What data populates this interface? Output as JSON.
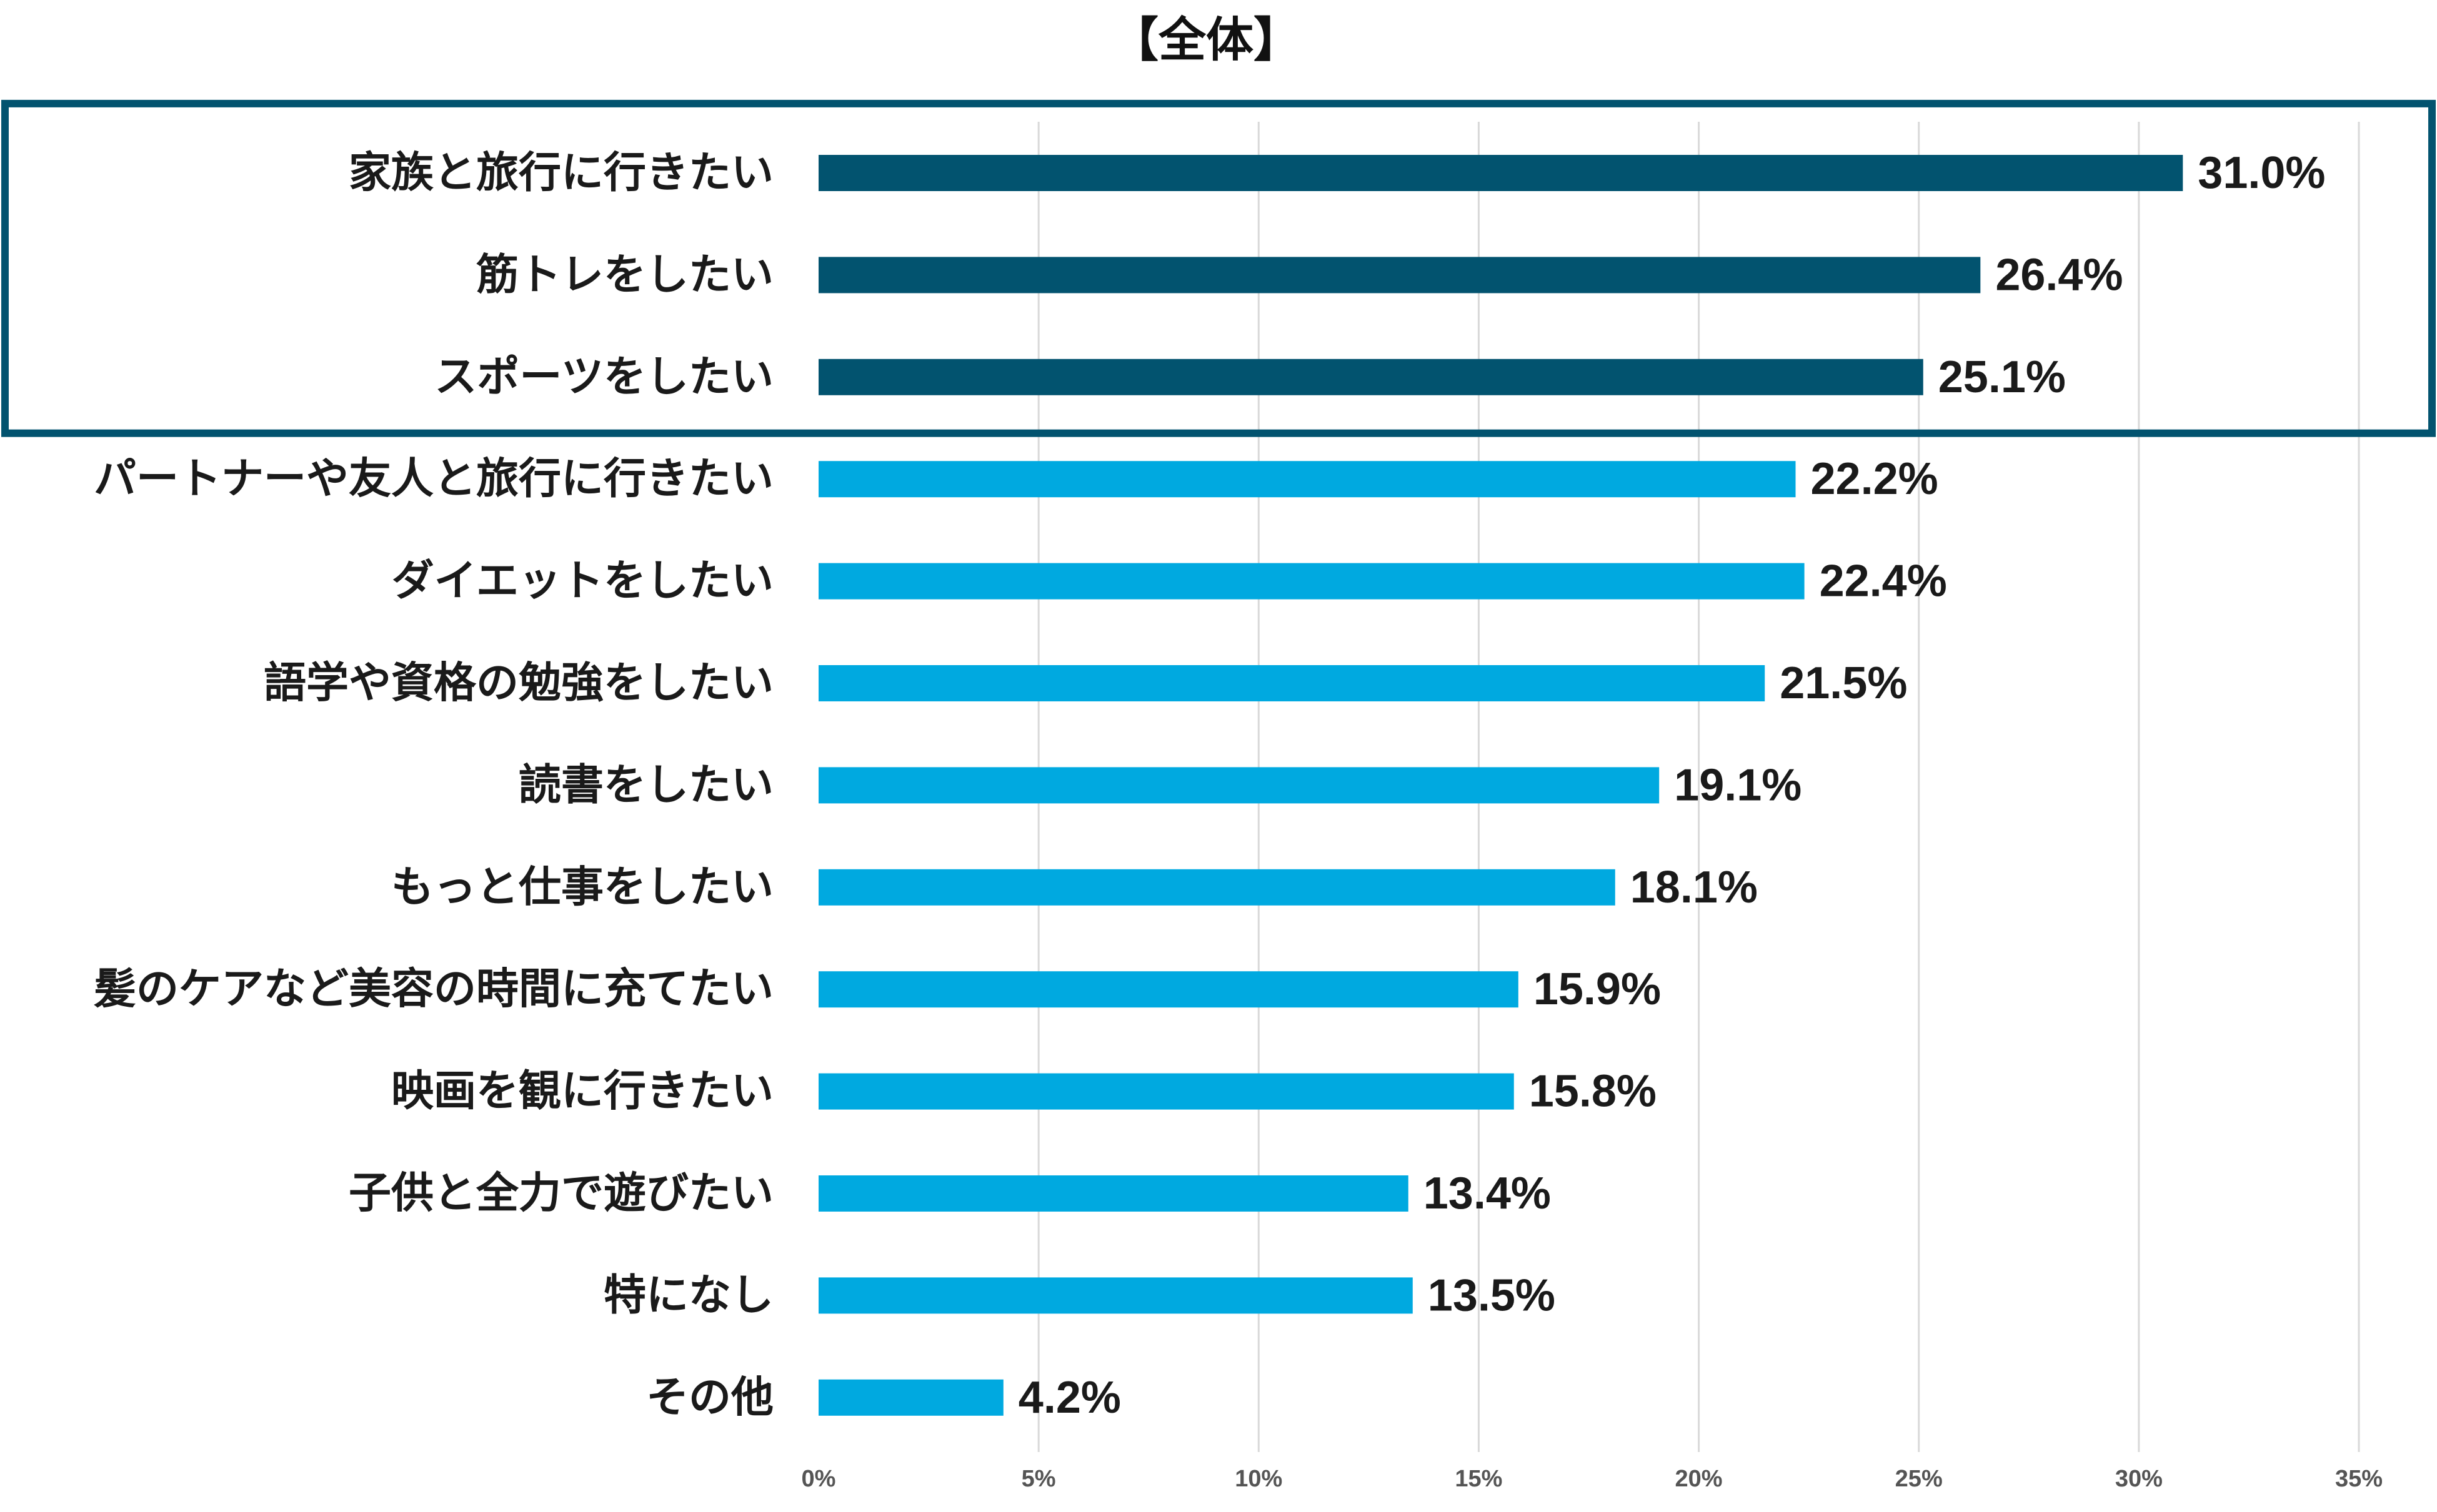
{
  "chart_data": {
    "type": "bar",
    "orientation": "horizontal",
    "title": "【全体】",
    "categories": [
      "家族と旅行に行きたい",
      "筋トレをしたい",
      "スポーツをしたい",
      "パートナーや友人と旅行に行きたい",
      "ダイエットをしたい",
      "語学や資格の勉強をしたい",
      "読書をしたい",
      "もっと仕事をしたい",
      "髪のケアなど美容の時間に充てたい",
      "映画を観に行きたい",
      "子供と全力で遊びたい",
      "特になし",
      "その他"
    ],
    "values": [
      31.0,
      26.4,
      25.1,
      22.2,
      22.4,
      21.5,
      19.1,
      18.1,
      15.9,
      15.8,
      13.4,
      13.5,
      4.2
    ],
    "value_labels": [
      "31.0%",
      "26.4%",
      "25.1%",
      "22.2%",
      "22.4%",
      "21.5%",
      "19.1%",
      "18.1%",
      "15.9%",
      "15.8%",
      "13.4%",
      "13.5%",
      "4.2%"
    ],
    "xlim": [
      0,
      35
    ],
    "x_ticks": [
      0,
      5,
      10,
      15,
      20,
      25,
      30,
      35
    ],
    "x_tick_labels": [
      "0%",
      "5%",
      "10%",
      "15%",
      "20%",
      "25%",
      "30%",
      "35%"
    ],
    "highlighted_count": 3,
    "grid": true,
    "colors": {
      "highlight_bar": "#02536f",
      "normal_bar": "#00a9e0",
      "highlight_box": "#02536f"
    }
  }
}
